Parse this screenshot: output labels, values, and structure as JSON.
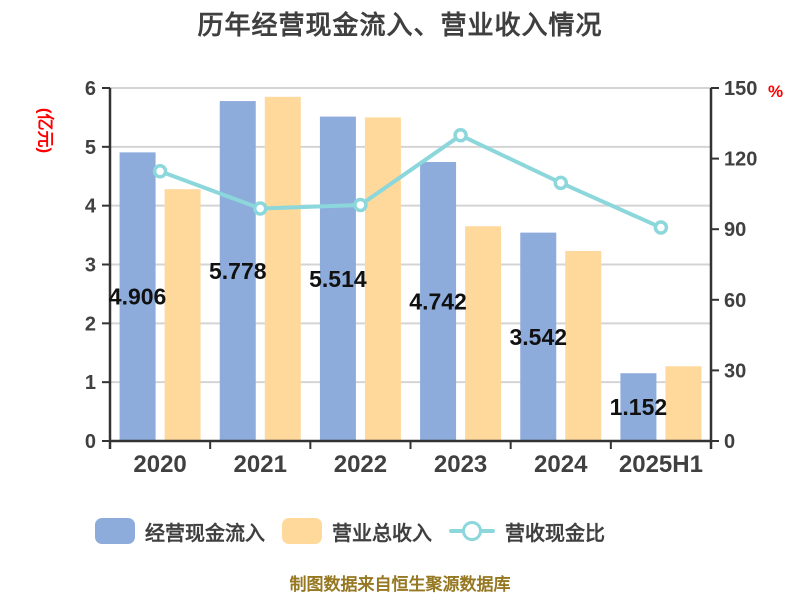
{
  "title": "历年经营现金流入、营业收入情况",
  "footer": "制图数据来自恒生聚源数据库",
  "colors": {
    "bar_cash": "#8DACDC",
    "bar_revenue": "#FED99B",
    "line_ratio": "#8BD7DB",
    "marker_fill": "#FFFFFF",
    "grid": "#D4D4D4",
    "axis": "#333333",
    "tick_text": "#404040",
    "title_text": "#3F3F3F",
    "label_text": "#111111",
    "accent_red": "#FE0000",
    "footer_text": "#967822"
  },
  "left_axis": {
    "label": "(亿元)",
    "ticks": [
      0,
      1,
      2,
      3,
      4,
      5,
      6
    ]
  },
  "right_axis": {
    "label": "%",
    "ticks": [
      0,
      30,
      60,
      90,
      120,
      150
    ]
  },
  "legend": {
    "items": [
      {
        "label": "经营现金流入"
      },
      {
        "label": "营业总收入"
      },
      {
        "label": "营收现金比"
      }
    ]
  },
  "chart_data": {
    "type": "bar+line combo",
    "categories": [
      "2020",
      "2021",
      "2022",
      "2023",
      "2024",
      "2025H1"
    ],
    "series": [
      {
        "name": "经营现金流入",
        "type": "bar",
        "axis": "left",
        "values": [
          4.906,
          5.778,
          5.514,
          4.742,
          3.542,
          1.152
        ],
        "data_labels": [
          "4.906",
          "5.778",
          "5.514",
          "4.742",
          "3.542",
          "1.152"
        ]
      },
      {
        "name": "营业总收入",
        "type": "bar",
        "axis": "left",
        "values": [
          4.28,
          5.85,
          5.5,
          3.65,
          3.23,
          1.27
        ]
      },
      {
        "name": "营收现金比",
        "type": "line",
        "axis": "right",
        "values": [
          114.6,
          98.8,
          100.3,
          129.9,
          109.7,
          90.7
        ]
      }
    ],
    "title": "历年经营现金流入、营业收入情况",
    "left_ylabel": "(亿元)",
    "right_ylabel": "%",
    "left_ylim": [
      0,
      6
    ],
    "right_ylim": [
      0,
      150
    ],
    "grid": true,
    "legend_position": "bottom"
  }
}
